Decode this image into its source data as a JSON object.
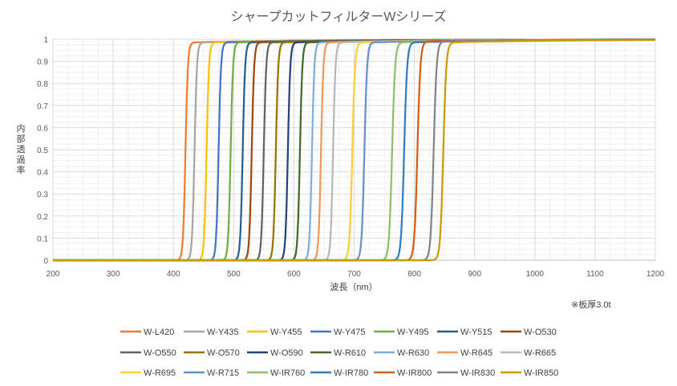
{
  "chart_data": {
    "type": "line",
    "title": "シャープカットフィルターWシリーズ",
    "xlabel": "波長（nm）",
    "ylabel": "内部透過率",
    "note": "※板厚3.0t",
    "xlim": [
      200,
      1200
    ],
    "ylim": [
      0,
      1
    ],
    "x_ticks": [
      "200",
      "300",
      "400",
      "500",
      "600",
      "700",
      "800",
      "900",
      "1000",
      "1100",
      "1200"
    ],
    "y_ticks": [
      "0",
      "0.1",
      "0.2",
      "0.3",
      "0.4",
      "0.5",
      "0.6",
      "0.7",
      "0.8",
      "0.9",
      "1"
    ],
    "grid": true,
    "legend_position": "bottom",
    "series": [
      {
        "name": "W-L420",
        "color": "#ED7D31",
        "cut_nm": 420,
        "width_nm": 8,
        "plateau": 0.985
      },
      {
        "name": "W-Y435",
        "color": "#A5A5A5",
        "cut_nm": 435,
        "width_nm": 8,
        "plateau": 0.985
      },
      {
        "name": "W-Y455",
        "color": "#FFC000",
        "cut_nm": 455,
        "width_nm": 8,
        "plateau": 0.985
      },
      {
        "name": "W-Y475",
        "color": "#4472C4",
        "cut_nm": 475,
        "width_nm": 8,
        "plateau": 0.985
      },
      {
        "name": "W-Y495",
        "color": "#70AD47",
        "cut_nm": 495,
        "width_nm": 8,
        "plateau": 0.985
      },
      {
        "name": "W-Y515",
        "color": "#255E91",
        "cut_nm": 515,
        "width_nm": 8,
        "plateau": 0.985
      },
      {
        "name": "W-O530",
        "color": "#9E480E",
        "cut_nm": 530,
        "width_nm": 8,
        "plateau": 0.985
      },
      {
        "name": "W-O550",
        "color": "#636363",
        "cut_nm": 550,
        "width_nm": 8,
        "plateau": 0.985
      },
      {
        "name": "W-O570",
        "color": "#997300",
        "cut_nm": 570,
        "width_nm": 8,
        "plateau": 0.985
      },
      {
        "name": "W-O590",
        "color": "#264478",
        "cut_nm": 590,
        "width_nm": 8,
        "plateau": 0.985
      },
      {
        "name": "W-R610",
        "color": "#43682B",
        "cut_nm": 610,
        "width_nm": 8,
        "plateau": 0.985
      },
      {
        "name": "W-R630",
        "color": "#7CAFDD",
        "cut_nm": 630,
        "width_nm": 8,
        "plateau": 0.985
      },
      {
        "name": "W-R645",
        "color": "#F1975A",
        "cut_nm": 645,
        "width_nm": 8,
        "plateau": 0.985
      },
      {
        "name": "W-R665",
        "color": "#B7B7B7",
        "cut_nm": 665,
        "width_nm": 8,
        "plateau": 0.985
      },
      {
        "name": "W-R695",
        "color": "#FFCD33",
        "cut_nm": 697,
        "width_nm": 9,
        "plateau": 0.985
      },
      {
        "name": "W-R715",
        "color": "#698ED0",
        "cut_nm": 717,
        "width_nm": 9,
        "plateau": 0.985
      },
      {
        "name": "W-IR760",
        "color": "#8CC168",
        "cut_nm": 763,
        "width_nm": 10,
        "plateau": 0.985
      },
      {
        "name": "W-IR780",
        "color": "#327DC2",
        "cut_nm": 783,
        "width_nm": 10,
        "plateau": 0.985
      },
      {
        "name": "W-IR800",
        "color": "#D26012",
        "cut_nm": 805,
        "width_nm": 10,
        "plateau": 0.99
      },
      {
        "name": "W-IR830",
        "color": "#848484",
        "cut_nm": 832,
        "width_nm": 10,
        "plateau": 0.99
      },
      {
        "name": "W-IR850",
        "color": "#CC9A00",
        "cut_nm": 848,
        "width_nm": 10,
        "plateau": 0.985
      }
    ]
  }
}
